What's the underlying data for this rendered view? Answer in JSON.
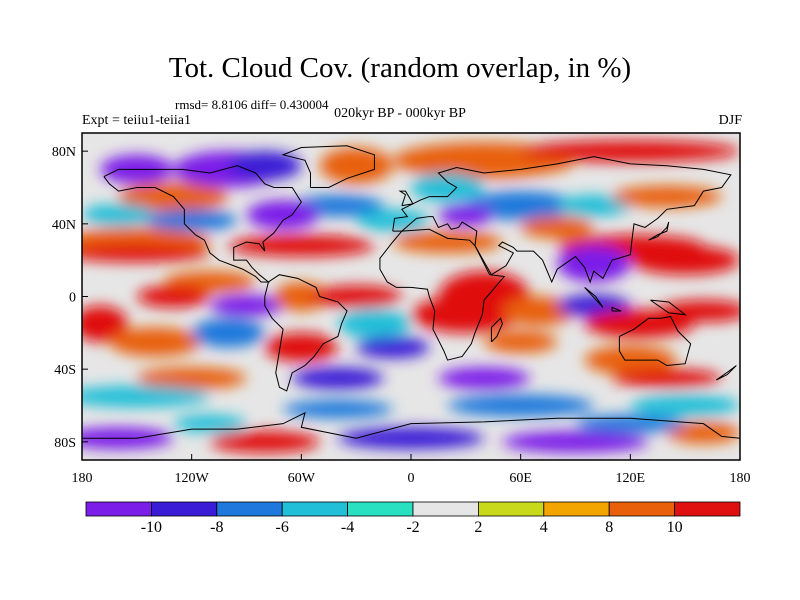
{
  "title": "Tot. Cloud Cov. (random overlap, in %)",
  "stats": "rmsd= 8.8106 diff= 0.430004",
  "experiment": "Expt = teiiu1-teiia1",
  "period": "020kyr BP - 000kyr BP",
  "season": "DJF",
  "map": {
    "projection": "cylindrical-equidistant",
    "lon_range": [
      -180,
      180
    ],
    "lat_range": [
      -90,
      90
    ],
    "lon_ticks": [
      "180",
      "120W",
      "60W",
      "0",
      "60E",
      "120E",
      "180"
    ],
    "lat_ticks": [
      "80N",
      "40N",
      "0",
      "40S",
      "80S"
    ],
    "field": "cloud cover difference (%)"
  },
  "colorbar": {
    "labels": [
      "-10",
      "-8",
      "-6",
      "-4",
      "-2",
      "2",
      "4",
      "8",
      "10"
    ],
    "colors": [
      "#7b1ee8",
      "#3a1cd6",
      "#1f78dc",
      "#21bfd8",
      "#29e0c0",
      "#e6e6e6",
      "#c8d81a",
      "#f2a400",
      "#e8600a",
      "#e01010"
    ]
  }
}
